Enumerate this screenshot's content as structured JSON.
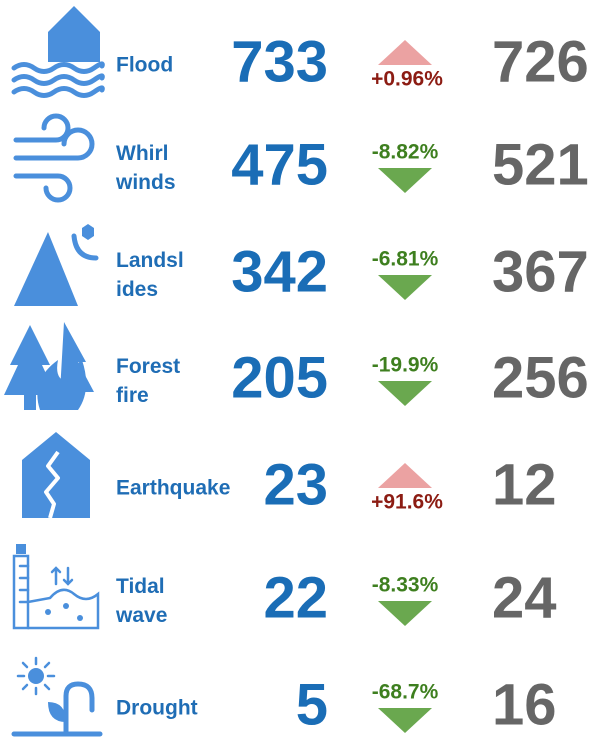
{
  "rows": [
    {
      "label": [
        "Flood"
      ],
      "current": "733",
      "change": "+0.96%",
      "direction": "up",
      "previous": "726"
    },
    {
      "label": [
        "Whirl",
        "winds"
      ],
      "current": "475",
      "change": "-8.82%",
      "direction": "down",
      "previous": "521"
    },
    {
      "label": [
        "Landsl",
        "ides"
      ],
      "current": "342",
      "change": "-6.81%",
      "direction": "down",
      "previous": "367"
    },
    {
      "label": [
        "Forest",
        "fire"
      ],
      "current": "205",
      "change": "-19.9%",
      "direction": "down",
      "previous": "256"
    },
    {
      "label": [
        "Earthquake"
      ],
      "current": "23",
      "change": "+91.6%",
      "direction": "up",
      "previous": "12"
    },
    {
      "label": [
        "Tidal",
        "wave"
      ],
      "current": "22",
      "change": "-8.33%",
      "direction": "down",
      "previous": "24"
    },
    {
      "label": [
        "Drought"
      ],
      "current": "5",
      "change": "-68.7%",
      "direction": "down",
      "previous": "16"
    }
  ]
}
